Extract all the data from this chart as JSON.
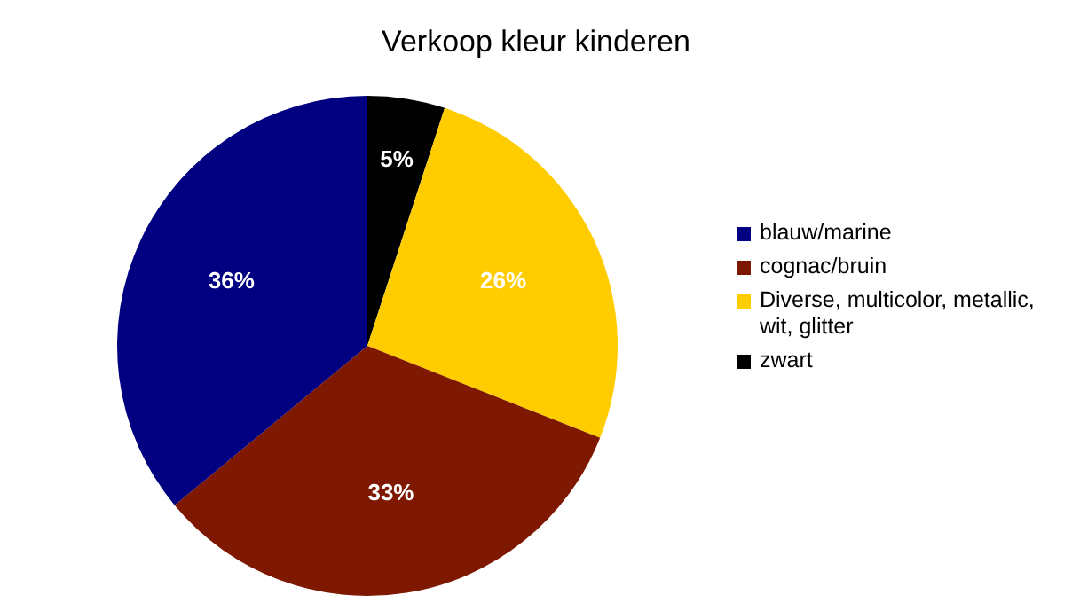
{
  "chart_data": {
    "type": "pie",
    "title": "Verkoop kleur kinderen",
    "categories": [
      "blauw/marine",
      "cognac/bruin",
      "Diverse, multicolor, metallic, wit, glitter",
      "zwart"
    ],
    "values": [
      36,
      33,
      26,
      5
    ],
    "colors": [
      "#000080",
      "#7f1800",
      "#ffcc00",
      "#000000"
    ],
    "value_labels": [
      "36%",
      "33%",
      "26%",
      "5%"
    ],
    "legend": "right"
  }
}
